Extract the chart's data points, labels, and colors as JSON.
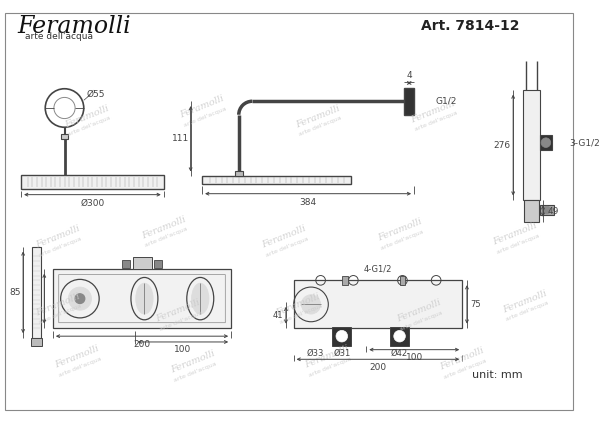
{
  "bg_color": "#ffffff",
  "border_color": "#aaaaaa",
  "line_color": "#444444",
  "dim_color": "#444444",
  "watermark_color": "#c8c8c8",
  "title_brand": "Feramolli",
  "title_sub": "arte dell'acqua",
  "art_number": "Art. 7814-12",
  "unit_label": "unit: mm",
  "dims": {
    "shower_head_diameter": "Ø300",
    "shower_head_side": "384",
    "pipe_diameter": "Ø55",
    "pipe_height": "111",
    "wall_connector": "G1/2",
    "wall_thickness": "4",
    "body_width": "200",
    "body_dim1": "100",
    "body_dim2": "Ø33",
    "body_dim3": "Ø31",
    "body_dim4": "Ø42",
    "body_conn": "4-G1/2",
    "side_height": "276",
    "side_conn": "3-G1/2",
    "side_bottom": "49",
    "hand_height": "85",
    "body_side_dim": "75",
    "body_top_dim": "41"
  }
}
